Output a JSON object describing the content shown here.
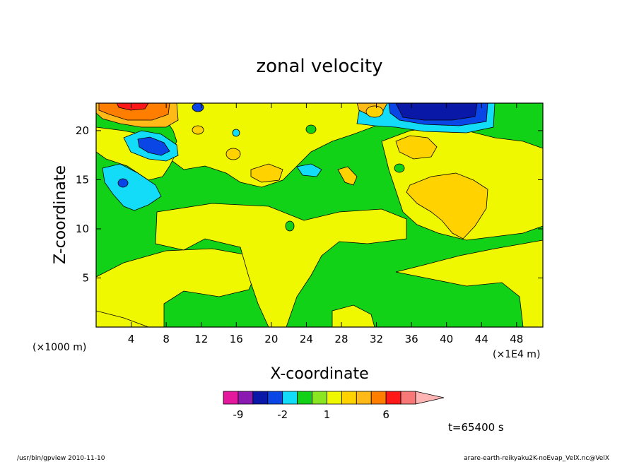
{
  "chart_data": {
    "type": "heatmap",
    "title": "zonal velocity",
    "xlabel": "X-coordinate",
    "ylabel": "Z-coordinate",
    "x_unit_label": "(×1E4 m)",
    "y_unit_label": "(×1000 m)",
    "xlim": [
      0,
      51
    ],
    "ylim": [
      0,
      22.8
    ],
    "x_ticks": [
      4,
      8,
      12,
      16,
      20,
      24,
      28,
      32,
      36,
      40,
      44,
      48
    ],
    "y_ticks": [
      5,
      10,
      15,
      20
    ],
    "time_label": "t=65400 s",
    "colorbar": {
      "bins": [
        {
          "lo": -12,
          "hi": -9,
          "color": "#e4189c"
        },
        {
          "lo": -9,
          "hi": -6,
          "color": "#8a1ab0"
        },
        {
          "lo": -6,
          "hi": -3,
          "color": "#0a18a8"
        },
        {
          "lo": -3,
          "hi": -2,
          "color": "#0a46e6"
        },
        {
          "lo": -2,
          "hi": -1,
          "color": "#12dcf8"
        },
        {
          "lo": -1,
          "hi": 0,
          "color": "#12d218"
        },
        {
          "lo": 0,
          "hi": 1,
          "color": "#8ae622"
        },
        {
          "lo": 1,
          "hi": 2,
          "color": "#f0f800"
        },
        {
          "lo": 2,
          "hi": 3,
          "color": "#ffd200"
        },
        {
          "lo": 3,
          "hi": 4,
          "color": "#ffba18"
        },
        {
          "lo": 4,
          "hi": 6,
          "color": "#ff7e00"
        },
        {
          "lo": 6,
          "hi": 9,
          "color": "#ff1818"
        },
        {
          "lo": 9,
          "hi": 12,
          "color": "#f87878"
        }
      ],
      "over_color": "#ffb4b4",
      "labels": [
        "-9",
        "-2",
        "1",
        "6"
      ],
      "label_values": [
        -9,
        -2,
        1,
        6
      ]
    },
    "regions": [
      {
        "level": "-1..0",
        "color": "#12d218",
        "desc": "base green field"
      },
      {
        "level": "1..2",
        "color": "#f0f800",
        "desc": "yellow bands near z=8-12 and lower-left"
      },
      {
        "level": "-2..-1",
        "color": "#12dcf8",
        "desc": "cyan at x~4 z~14 and x~35-42 z~20"
      },
      {
        "level": "-6..-3",
        "color": "#0a18a8",
        "desc": "dark blue core at x~38-42 z~22"
      },
      {
        "level": "4..6",
        "color": "#ff7e00",
        "desc": "orange at top-left x~2-8 z~22"
      },
      {
        "level": "2..3",
        "color": "#ffd200",
        "desc": "light orange patch x~37-43 z~13"
      }
    ]
  },
  "footer": {
    "left": "/usr/bin/gpview  2010-11-10",
    "right": "arare-earth-reikyaku2K-noEvap_VelX.nc@VelX"
  }
}
